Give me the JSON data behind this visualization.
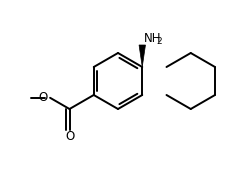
{
  "bg_color": "#ffffff",
  "line_color": "#000000",
  "line_width": 1.4,
  "font_size_nh2": 8.5,
  "font_size_o": 8.5,
  "nh2_label": "NH",
  "nh2_sub": "2",
  "o_label": "O",
  "carbonyl_o_label": "O",
  "wedge_color": "#000000"
}
